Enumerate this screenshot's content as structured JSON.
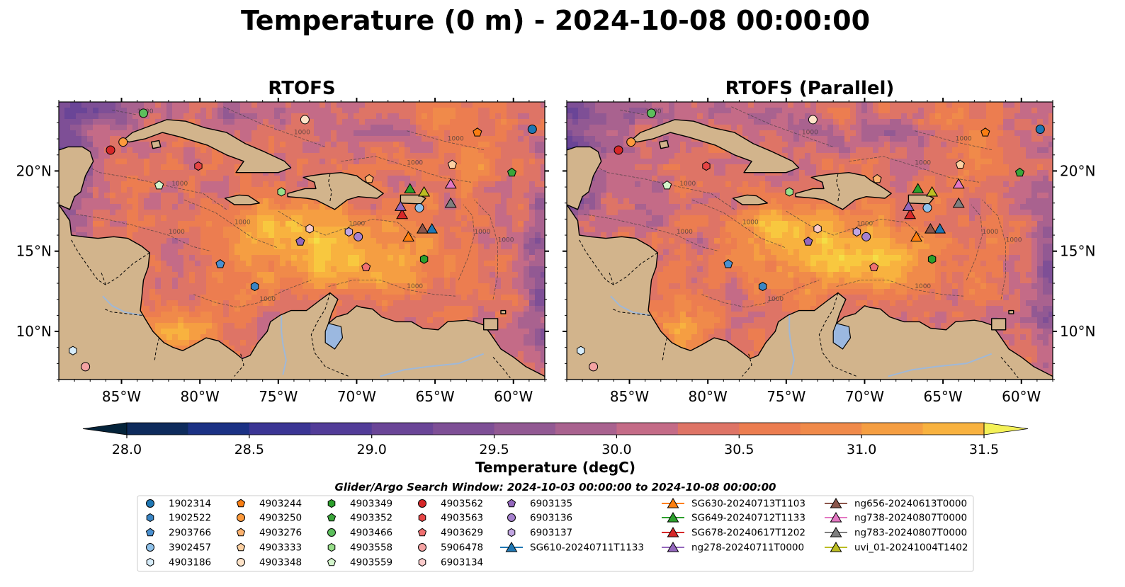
{
  "figure": {
    "title": "Temperature (0 m) - 2024-10-08 00:00:00",
    "legend_title": "Glider/Argo Search Window: 2024-10-03 00:00:00 to 2024-10-08 00:00:00"
  },
  "colors": {
    "land": "#d2b48c",
    "lake": "#9bb8e0",
    "river": "#9fb8d8",
    "cmap": [
      "#04233a",
      "#0e2b5c",
      "#1b3184",
      "#3b3594",
      "#523c98",
      "#6a4597",
      "#7e4f96",
      "#925993",
      "#a9628f",
      "#c46b87",
      "#de7466",
      "#ec7d50",
      "#f08a4a",
      "#f59e42",
      "#f8b23f",
      "#f8c83f",
      "#f4de46",
      "#f4f158"
    ]
  },
  "chart_data": [
    {
      "type": "heatmap",
      "title": "RTOFS",
      "xlim": [
        -89,
        -58
      ],
      "ylim": [
        7,
        24.3
      ],
      "xticks": [
        {
          "value": -85,
          "label": "85°W"
        },
        {
          "value": -80,
          "label": "80°W"
        },
        {
          "value": -75,
          "label": "75°W"
        },
        {
          "value": -70,
          "label": "70°W"
        },
        {
          "value": -65,
          "label": "65°W"
        },
        {
          "value": -60,
          "label": "60°W"
        }
      ],
      "yticks": [
        {
          "value": 20,
          "label": "20°N"
        },
        {
          "value": 15,
          "label": "15°N"
        },
        {
          "value": 10,
          "label": "10°N"
        }
      ],
      "ytick_side": "left",
      "grid": false,
      "contour_label": "1000"
    },
    {
      "type": "heatmap",
      "title": "RTOFS (Parallel)",
      "xlim": [
        -89,
        -58
      ],
      "ylim": [
        7,
        24.3
      ],
      "xticks": [
        {
          "value": -85,
          "label": "85°W"
        },
        {
          "value": -80,
          "label": "80°W"
        },
        {
          "value": -75,
          "label": "75°W"
        },
        {
          "value": -70,
          "label": "70°W"
        },
        {
          "value": -65,
          "label": "65°W"
        },
        {
          "value": -60,
          "label": "60°W"
        }
      ],
      "yticks": [
        {
          "value": 20,
          "label": "20°N"
        },
        {
          "value": 15,
          "label": "15°N"
        },
        {
          "value": 10,
          "label": "10°N"
        }
      ],
      "ytick_side": "right",
      "grid": false,
      "contour_label": "1000"
    }
  ],
  "colorbar": {
    "label": "Temperature (degC)",
    "min": 28.0,
    "max": 31.5,
    "ticks": [
      {
        "value": 28.0,
        "label": "28.0"
      },
      {
        "value": 28.5,
        "label": "28.5"
      },
      {
        "value": 29.0,
        "label": "29.0"
      },
      {
        "value": 29.5,
        "label": "29.5"
      },
      {
        "value": 30.0,
        "label": "30.0"
      },
      {
        "value": 30.5,
        "label": "30.5"
      },
      {
        "value": 31.0,
        "label": "31.0"
      },
      {
        "value": 31.5,
        "label": "31.5"
      }
    ],
    "extend": "both"
  },
  "platforms": [
    {
      "name": "1902314",
      "marker": "circle",
      "color": "#1f77b4",
      "lon": -58.8,
      "lat": 22.6
    },
    {
      "name": "1902522",
      "marker": "hexagon",
      "color": "#3a85c4",
      "lon": -76.5,
      "lat": 12.8
    },
    {
      "name": "2903766",
      "marker": "pentagon",
      "color": "#4a90d0",
      "lon": -78.7,
      "lat": 14.2
    },
    {
      "name": "3902457",
      "marker": "circle",
      "color": "#8ec1ea",
      "lon": -66.0,
      "lat": 17.7
    },
    {
      "name": "4903186",
      "marker": "hexagon",
      "color": "#d6ecfa",
      "lon": -88.1,
      "lat": 8.8
    },
    {
      "name": "4903244",
      "marker": "pentagon",
      "color": "#f97d12",
      "lon": -62.3,
      "lat": 22.4
    },
    {
      "name": "4903250",
      "marker": "circle",
      "color": "#fd9a3c",
      "lon": -84.9,
      "lat": 21.8
    },
    {
      "name": "4903276",
      "marker": "pentagon",
      "color": "#fdb26e",
      "lon": -69.2,
      "lat": 19.5
    },
    {
      "name": "4903333",
      "marker": "pentagon",
      "color": "#fdd0a2",
      "lon": -63.9,
      "lat": 20.4
    },
    {
      "name": "4903348",
      "marker": "circle",
      "color": "#fee3c8",
      "lon": -73.3,
      "lat": 23.2
    },
    {
      "name": "4903349",
      "marker": "hexagon",
      "color": "#2ca02c",
      "lon": -65.7,
      "lat": 14.5
    },
    {
      "name": "4903352",
      "marker": "pentagon",
      "color": "#3aa63a",
      "lon": -60.1,
      "lat": 19.9
    },
    {
      "name": "4903466",
      "marker": "circle",
      "color": "#5cbf5c",
      "lon": -83.6,
      "lat": 23.6
    },
    {
      "name": "4903558",
      "marker": "hexagon",
      "color": "#98df8a",
      "lon": -74.8,
      "lat": 18.7
    },
    {
      "name": "4903559",
      "marker": "pentagon",
      "color": "#d4f5cc",
      "lon": -82.6,
      "lat": 19.1
    },
    {
      "name": "4903562",
      "marker": "circle",
      "color": "#d62728",
      "lon": -85.7,
      "lat": 21.3
    },
    {
      "name": "4903563",
      "marker": "hexagon",
      "color": "#e64545",
      "lon": -80.1,
      "lat": 20.3
    },
    {
      "name": "4903629",
      "marker": "pentagon",
      "color": "#f07070",
      "lon": -69.4,
      "lat": 14.0
    },
    {
      "name": "5906478",
      "marker": "circle",
      "color": "#f4a3a3",
      "lon": -87.3,
      "lat": 7.8
    },
    {
      "name": "6903134",
      "marker": "hexagon",
      "color": "#fbcbcb",
      "lon": -73.0,
      "lat": 16.4
    },
    {
      "name": "6903135",
      "marker": "pentagon",
      "color": "#9467bd",
      "lon": -73.6,
      "lat": 15.6
    },
    {
      "name": "6903136",
      "marker": "circle",
      "color": "#a681ce",
      "lon": -69.9,
      "lat": 15.9
    },
    {
      "name": "6903137",
      "marker": "hexagon",
      "color": "#c2a6e2",
      "lon": -70.5,
      "lat": 16.2
    },
    {
      "name": "SG610-20240711T1133",
      "marker": "triangle",
      "color": "#1f77b4",
      "line": true,
      "lon": -65.2,
      "lat": 16.4
    },
    {
      "name": "SG630-20240713T1103",
      "marker": "triangle",
      "color": "#ff7f0e",
      "line": true,
      "lon": -66.7,
      "lat": 15.9
    },
    {
      "name": "SG649-20240712T1133",
      "marker": "triangle",
      "color": "#2ca02c",
      "line": true,
      "lon": -66.6,
      "lat": 18.9
    },
    {
      "name": "SG678-20240617T1202",
      "marker": "triangle",
      "color": "#d62728",
      "line": true,
      "lon": -67.1,
      "lat": 17.3
    },
    {
      "name": "ng278-20240711T0000",
      "marker": "triangle",
      "color": "#9467bd",
      "line": true,
      "lon": -67.2,
      "lat": 17.8
    },
    {
      "name": "ng656-20240613T0000",
      "marker": "triangle",
      "color": "#8c564b",
      "line": true,
      "lon": -65.8,
      "lat": 16.4
    },
    {
      "name": "ng738-20240807T0000",
      "marker": "triangle",
      "color": "#e377c2",
      "line": true,
      "lon": -64.0,
      "lat": 19.2
    },
    {
      "name": "ng783-20240807T0000",
      "marker": "triangle",
      "color": "#7f7f7f",
      "line": true,
      "lon": -64.0,
      "lat": 18.0
    },
    {
      "name": "uvi_01-20241004T1402",
      "marker": "triangle",
      "color": "#bcbd22",
      "line": true,
      "lon": -65.7,
      "lat": 18.7
    }
  ]
}
